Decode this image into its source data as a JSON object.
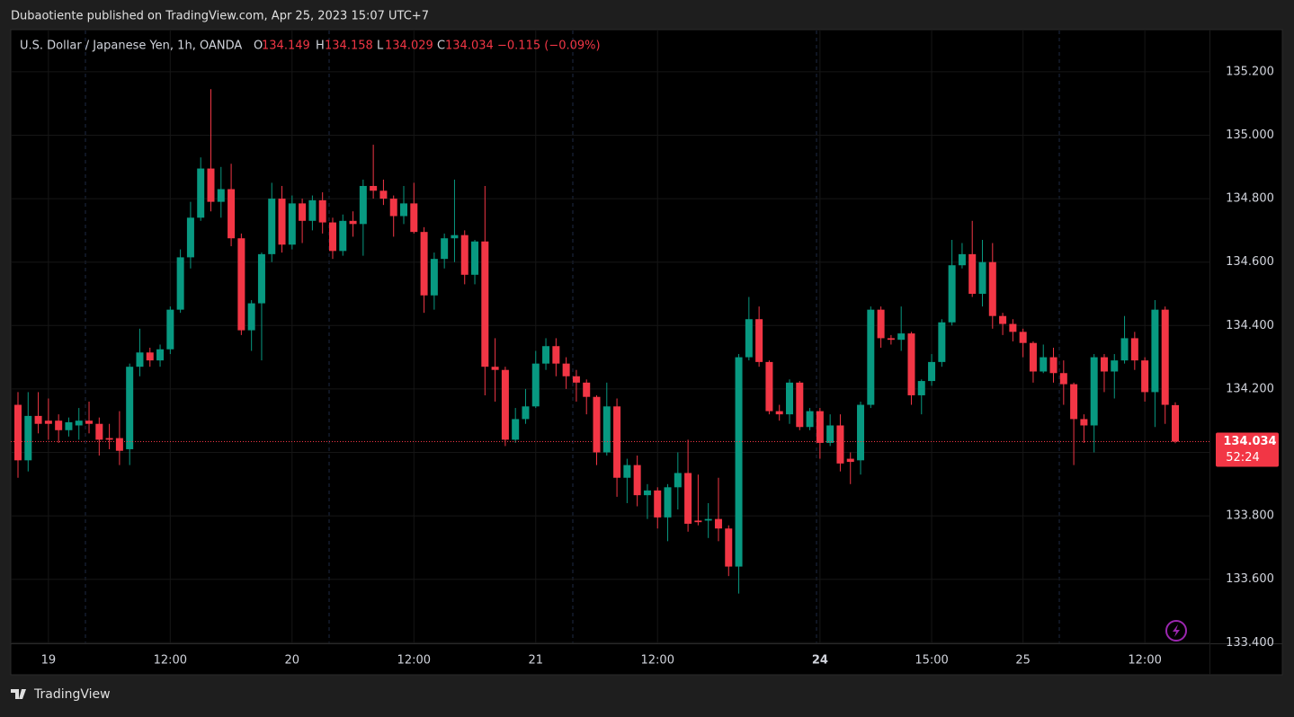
{
  "header": {
    "publisher": "Dubaotiente published on TradingView.com, Apr 25, 2023 15:07 UTC+7"
  },
  "footer": {
    "brand": "TradingView"
  },
  "chart_data": {
    "type": "candlestick",
    "title": "U.S. Dollar / Japanese Yen, 1h, OANDA",
    "ohlc_labels": [
      "O",
      "H",
      "L",
      "C"
    ],
    "change": "−0.115 (−0.09%)",
    "countdown": "52:24",
    "up_color": "#089981",
    "down_color": "#f23645",
    "grid": true,
    "categories": [
      null,
      null,
      null,
      "19",
      null,
      null,
      null,
      null,
      null,
      null,
      null,
      null,
      null,
      null,
      null,
      "12:00",
      null,
      null,
      null,
      null,
      null,
      null,
      null,
      null,
      null,
      null,
      null,
      "20",
      null,
      null,
      null,
      null,
      null,
      null,
      null,
      null,
      null,
      null,
      null,
      "12:00",
      null,
      null,
      null,
      null,
      null,
      null,
      null,
      null,
      null,
      null,
      null,
      "21",
      null,
      null,
      null,
      null,
      null,
      null,
      null,
      null,
      null,
      null,
      null,
      "12:00",
      null,
      null,
      null,
      null,
      null,
      null,
      null,
      null,
      null,
      null,
      null,
      null,
      null,
      null,
      null,
      "24",
      null,
      null,
      null,
      null,
      null,
      null,
      null,
      null,
      null,
      null,
      "15:00",
      null,
      null,
      null,
      null,
      null,
      null,
      null,
      null,
      "25",
      null,
      null,
      null,
      null,
      null,
      null,
      null,
      null,
      null,
      null,
      null,
      "12:00",
      null,
      null,
      null
    ],
    "open": [
      134.15,
      133.975,
      134.115,
      134.1,
      134.1,
      134.07,
      134.085,
      134.1,
      134.09,
      134.045,
      134.045,
      134.01,
      134.27,
      134.315,
      134.29,
      134.325,
      134.45,
      134.615,
      134.74,
      134.895,
      134.79,
      134.83,
      134.675,
      134.385,
      134.47,
      134.625,
      134.8,
      134.655,
      134.785,
      134.73,
      134.795,
      134.725,
      134.635,
      134.73,
      134.72,
      134.84,
      134.825,
      134.8,
      134.745,
      134.785,
      134.695,
      134.495,
      134.61,
      134.675,
      134.685,
      134.56,
      134.665,
      134.27,
      134.26,
      134.04,
      134.105,
      134.145,
      134.28,
      134.335,
      134.28,
      134.24,
      134.22,
      134.175,
      134.0,
      134.145,
      133.92,
      133.96,
      133.865,
      133.88,
      133.795,
      133.89,
      133.935,
      133.785,
      133.785,
      133.79,
      133.76,
      133.64,
      134.3,
      134.42,
      134.285,
      134.13,
      134.12,
      134.22,
      134.08,
      134.13,
      134.03,
      134.085,
      133.98,
      133.975,
      134.15,
      134.45,
      134.36,
      134.355,
      134.375,
      134.18,
      134.225,
      134.285,
      134.41,
      134.59,
      134.625,
      134.5,
      134.6,
      134.43,
      134.405,
      134.38,
      134.345,
      134.255,
      134.3,
      134.25,
      134.215,
      134.105,
      134.085,
      134.3,
      134.255,
      134.29,
      134.36,
      134.29,
      134.19,
      134.45,
      134.149
    ],
    "high": [
      134.19,
      134.19,
      134.19,
      134.17,
      134.12,
      134.11,
      134.14,
      134.16,
      134.11,
      134.09,
      134.13,
      134.28,
      134.39,
      134.33,
      134.34,
      134.46,
      134.64,
      134.79,
      134.93,
      135.145,
      134.9,
      134.91,
      134.69,
      134.48,
      134.63,
      134.85,
      134.84,
      134.81,
      134.8,
      134.81,
      134.82,
      134.74,
      134.75,
      134.76,
      134.86,
      134.97,
      134.86,
      134.81,
      134.84,
      134.85,
      134.71,
      134.63,
      134.69,
      134.86,
      134.7,
      134.67,
      134.84,
      134.36,
      134.27,
      134.14,
      134.2,
      134.32,
      134.36,
      134.36,
      134.3,
      134.26,
      134.23,
      134.18,
      134.22,
      134.17,
      133.98,
      133.99,
      133.9,
      133.89,
      133.9,
      134.0,
      134.04,
      133.93,
      133.84,
      133.92,
      133.77,
      134.31,
      134.49,
      134.46,
      134.29,
      134.15,
      134.23,
      134.225,
      134.14,
      134.14,
      134.12,
      134.12,
      134.0,
      134.16,
      134.46,
      134.46,
      134.37,
      134.46,
      134.38,
      134.23,
      134.31,
      134.42,
      134.67,
      134.66,
      134.73,
      134.67,
      134.66,
      134.44,
      134.42,
      134.39,
      134.35,
      134.34,
      134.33,
      134.29,
      134.22,
      134.12,
      134.31,
      134.31,
      134.31,
      134.43,
      134.38,
      134.3,
      134.48,
      134.46,
      134.158
    ],
    "low": [
      133.92,
      133.94,
      134.06,
      134.04,
      134.03,
      134.05,
      134.04,
      134.06,
      133.99,
      134.01,
      133.96,
      133.96,
      134.24,
      134.27,
      134.27,
      134.31,
      134.44,
      134.58,
      134.73,
      134.76,
      134.74,
      134.65,
      134.37,
      134.32,
      134.29,
      134.6,
      134.63,
      134.64,
      134.66,
      134.7,
      134.69,
      134.61,
      134.62,
      134.68,
      134.62,
      134.8,
      134.78,
      134.68,
      134.72,
      134.69,
      134.44,
      134.45,
      134.58,
      134.6,
      134.53,
      134.53,
      134.18,
      134.16,
      134.02,
      134.03,
      134.09,
      134.14,
      134.26,
      134.24,
      134.2,
      134.16,
      134.12,
      133.96,
      133.99,
      133.86,
      133.84,
      133.83,
      133.79,
      133.76,
      133.72,
      133.82,
      133.75,
      133.77,
      133.73,
      133.72,
      133.61,
      133.555,
      134.29,
      134.27,
      134.12,
      134.1,
      134.09,
      134.07,
      134.07,
      133.98,
      134.02,
      133.94,
      133.9,
      133.93,
      134.14,
      134.33,
      134.34,
      134.32,
      134.15,
      134.12,
      134.21,
      134.27,
      134.4,
      134.58,
      134.49,
      134.46,
      134.39,
      134.37,
      134.35,
      134.3,
      134.22,
      134.25,
      134.22,
      134.15,
      133.96,
      134.03,
      134.0,
      134.19,
      134.17,
      134.28,
      134.26,
      134.16,
      134.08,
      134.09,
      134.029
    ],
    "close": [
      133.975,
      134.115,
      134.09,
      134.09,
      134.07,
      134.095,
      134.1,
      134.09,
      134.04,
      134.04,
      134.005,
      134.27,
      134.315,
      134.29,
      134.325,
      134.45,
      134.615,
      134.74,
      134.895,
      134.79,
      134.83,
      134.675,
      134.385,
      134.47,
      134.625,
      134.8,
      134.655,
      134.785,
      134.73,
      134.795,
      134.725,
      134.635,
      134.73,
      134.72,
      134.84,
      134.825,
      134.8,
      134.745,
      134.785,
      134.695,
      134.495,
      134.61,
      134.675,
      134.685,
      134.56,
      134.665,
      134.27,
      134.26,
      134.04,
      134.105,
      134.145,
      134.28,
      134.335,
      134.28,
      134.24,
      134.22,
      134.175,
      134.0,
      134.145,
      133.92,
      133.96,
      133.865,
      133.88,
      133.795,
      133.89,
      133.935,
      133.775,
      133.78,
      133.79,
      133.76,
      133.64,
      134.3,
      134.42,
      134.285,
      134.13,
      134.12,
      134.22,
      134.08,
      134.13,
      134.03,
      134.085,
      133.965,
      133.97,
      134.15,
      134.45,
      134.36,
      134.355,
      134.375,
      134.18,
      134.225,
      134.285,
      134.41,
      134.59,
      134.625,
      134.5,
      134.6,
      134.43,
      134.405,
      134.38,
      134.345,
      134.255,
      134.3,
      134.25,
      134.215,
      134.105,
      134.085,
      134.3,
      134.255,
      134.29,
      134.36,
      134.29,
      134.19,
      134.45,
      134.15,
      134.034
    ],
    "ylim": [
      133.398,
      135.33
    ],
    "yticks": [
      {
        "value": 133.4,
        "label": "133.400"
      },
      {
        "value": 133.6,
        "label": "133.600"
      },
      {
        "value": 133.8,
        "label": "133.800"
      },
      {
        "value": 134.0,
        "label": "134.000"
      },
      {
        "value": 134.2,
        "label": "134.200"
      },
      {
        "value": 134.4,
        "label": "134.400"
      },
      {
        "value": 134.6,
        "label": "134.600"
      },
      {
        "value": 134.8,
        "label": "134.800"
      },
      {
        "value": 135.0,
        "label": "135.000"
      },
      {
        "value": 135.2,
        "label": "135.200"
      }
    ]
  }
}
